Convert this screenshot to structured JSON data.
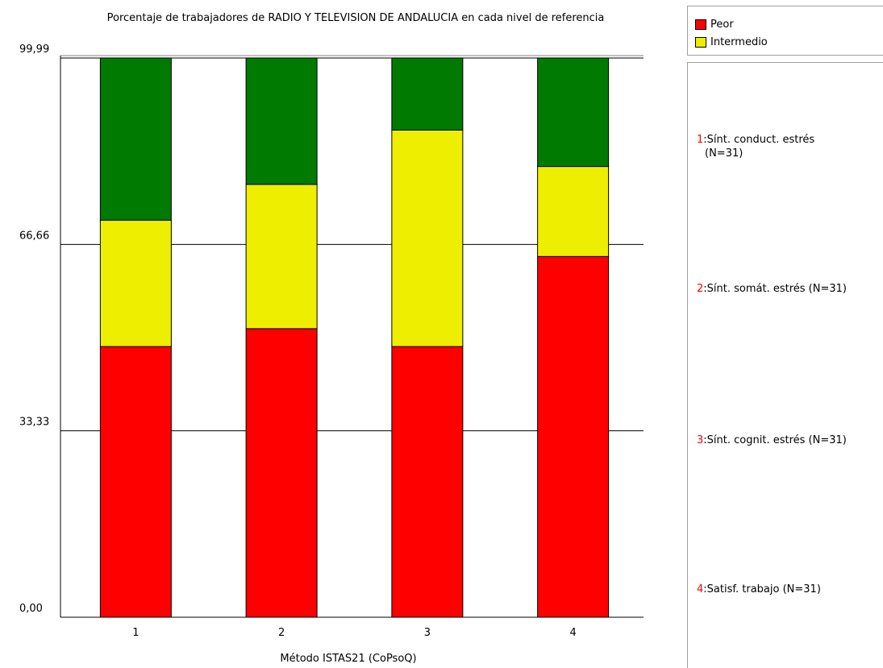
{
  "chart_data": {
    "type": "bar",
    "stacked": true,
    "title": "Porcentaje de trabajadores de RADIO Y TELEVISION DE ANDALUCIA en cada nivel de referencia",
    "xlabel": "Método ISTAS21 (CoPsoQ)",
    "ylabel": "",
    "ylim": [
      0,
      99.99
    ],
    "yticks": [
      "0,00",
      "33,33",
      "66,66",
      "99,99"
    ],
    "ytick_values": [
      0,
      33.33,
      66.66,
      99.99
    ],
    "grid": true,
    "categories": [
      "1",
      "2",
      "3",
      "4"
    ],
    "series": [
      {
        "name": "Peor",
        "color": "#ff0000",
        "values": [
          48.4,
          51.6,
          48.4,
          64.5
        ]
      },
      {
        "name": "Intermedio",
        "color": "#eeee00",
        "values": [
          22.6,
          25.8,
          38.7,
          16.1
        ]
      },
      {
        "name": "",
        "color": "#007a00",
        "values": [
          29.0,
          22.6,
          12.9,
          19.4
        ]
      }
    ],
    "category_legend": [
      {
        "num": "1",
        "label": "Sínt. conduct. estrés",
        "label2": "(N=31)"
      },
      {
        "num": "2",
        "label": "Sínt. somát. estrés (N=31)",
        "label2": ""
      },
      {
        "num": "3",
        "label": "Sínt. cognit. estrés (N=31)",
        "label2": ""
      },
      {
        "num": "4",
        "label": "Satisf. trabajo (N=31)",
        "label2": ""
      }
    ],
    "colors": {
      "category_number": "#ff0000",
      "axis": "#000000",
      "legend_border": "#a0a0a0"
    }
  }
}
